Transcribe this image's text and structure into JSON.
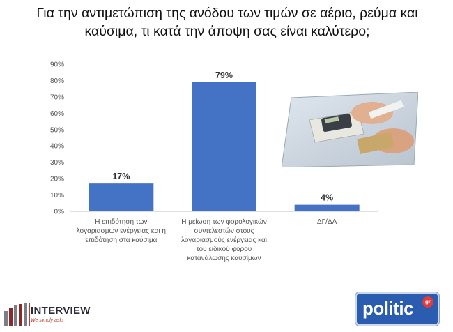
{
  "title_lines": [
    "Για την αντιμετώπιση της ανόδου των τιμών σε αέριο, ρεύμα και",
    "καύσιμα, τι κατά την άποψη σας είναι καλύτερο;"
  ],
  "chart_data": {
    "type": "bar",
    "title": "Για την αντιμετώπιση της ανόδου των τιμών σε αέριο, ρεύμα και καύσιμα, τι κατά την άποψη σας είναι καλύτερο;",
    "categories": [
      "Η επιδότηση των λογαριασμών ενέργειας και η επιδότηση στα καύσιμα",
      "Η μείωση των φορολογικών συντελεστών στους λογαριασμούς ενέργειας και του ειδικού φόρου κατανάλωσης καυσίμων",
      "ΔΓ/ΔΑ"
    ],
    "category_lines": [
      [
        "Η επιδότηση των",
        "λογαριασμών ενέργειας και η",
        "επιδότηση στα καύσιμα"
      ],
      [
        "Η μείωση των φορολογικών",
        "συντελεστών στους",
        "λογαριασμούς ενέργειας και",
        "του ειδικού φόρου",
        "κατανάλωσης καυσίμων"
      ],
      [
        "ΔΓ/ΔΑ"
      ]
    ],
    "values": [
      17,
      79,
      4
    ],
    "data_labels": [
      "17%",
      "79%",
      "4%"
    ],
    "ylim": [
      0,
      90
    ],
    "yticks": [
      0,
      10,
      20,
      30,
      40,
      50,
      60,
      70,
      80,
      90
    ],
    "ytick_labels": [
      "0%",
      "10%",
      "20%",
      "30%",
      "40%",
      "50%",
      "60%",
      "70%",
      "80%",
      "90%"
    ],
    "grid": false,
    "bar_color": "#4472c4"
  },
  "logos": {
    "interview_name": "INTERVIEW",
    "interview_tagline": "We simply ask!",
    "politic_name": "politic",
    "politic_suffix": "gr"
  },
  "colors": {
    "bar": "#4472c4",
    "politic_bg": "#2a5db0",
    "interview_accent": "#c0392b"
  }
}
